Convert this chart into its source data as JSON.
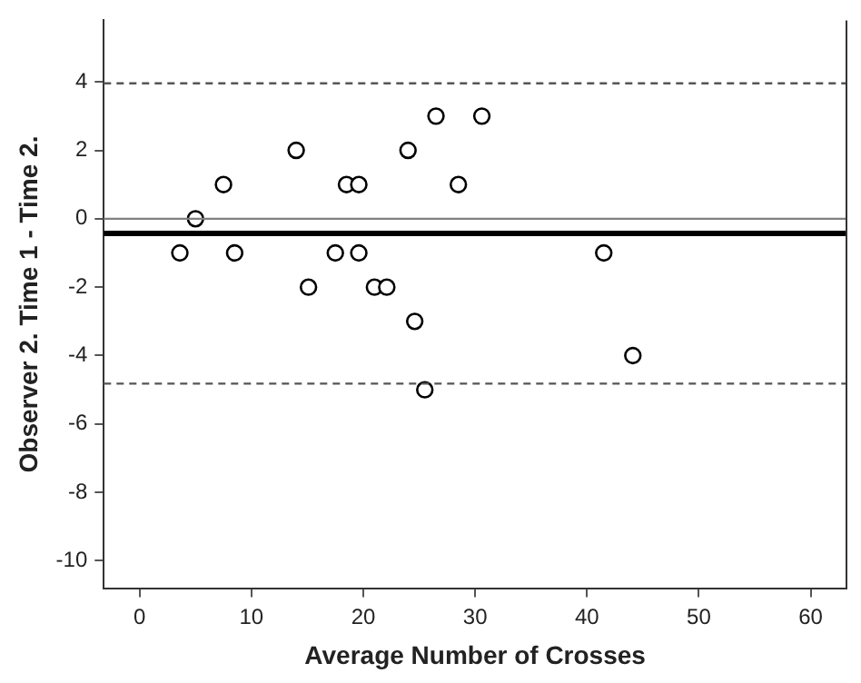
{
  "chart_data": {
    "type": "scatter",
    "xlabel": "Average Number of Crosses",
    "ylabel": "Observer 2. Time 1 - Time 2.",
    "x": [
      3.6,
      5.0,
      7.5,
      8.5,
      14.0,
      15.1,
      17.5,
      18.5,
      19.6,
      19.6,
      21.0,
      22.1,
      24.0,
      24.6,
      25.5,
      26.5,
      28.5,
      30.6,
      41.5,
      44.1
    ],
    "series": [
      {
        "color": "#000000",
        "values": [
          -1,
          0,
          1,
          -1,
          2,
          -2,
          -1,
          1,
          1,
          -1,
          -2,
          -2,
          2,
          -3,
          -5,
          3,
          1,
          3,
          -1,
          -4
        ]
      }
    ],
    "marker": "circle",
    "grid": false,
    "legend": false,
    "xlim": [
      -3.2,
      63.2
    ],
    "xticks": [
      0,
      10,
      20,
      30,
      40,
      50,
      60
    ],
    "ylim": [
      -10.8,
      5.8
    ],
    "yticks": [
      -10,
      -8,
      -6,
      -4,
      -2,
      0,
      2,
      4
    ],
    "ref_lines": [
      {
        "axis": "y",
        "value": 0,
        "color": "#808080",
        "line_style": "solid"
      },
      {
        "axis": "y",
        "value": -0.43,
        "color": "#000000",
        "line_style": "solid"
      },
      {
        "axis": "y",
        "value": 3.96,
        "color": "#555555",
        "line_style": "dashed"
      },
      {
        "axis": "y",
        "value": -4.82,
        "color": "#555555",
        "line_style": "dashed"
      }
    ]
  }
}
